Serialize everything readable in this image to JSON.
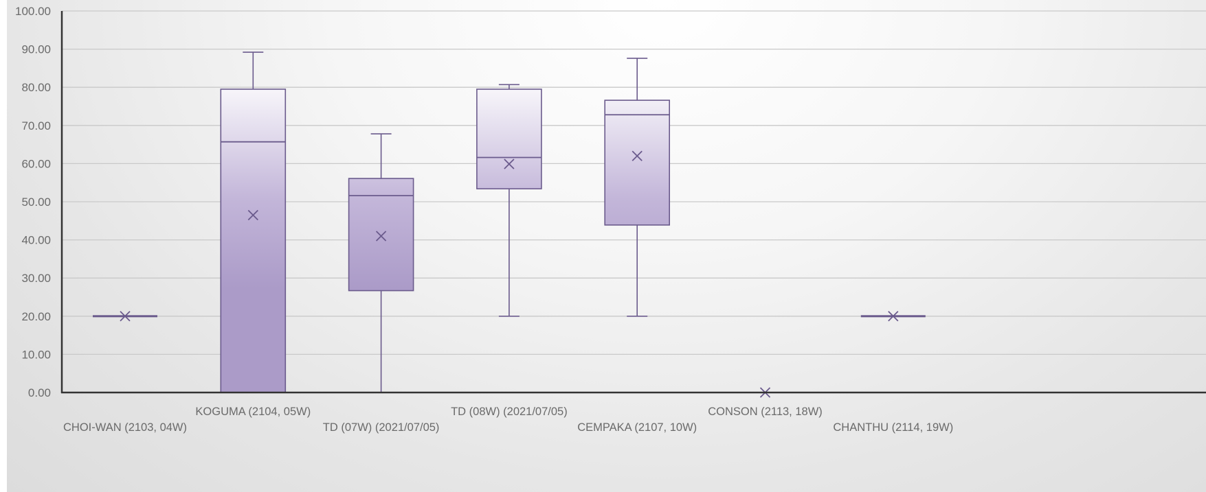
{
  "chart_data": {
    "type": "box",
    "title": "",
    "xlabel": "",
    "ylabel": "",
    "ylim": [
      0,
      100
    ],
    "y_ticks": [
      "0.00",
      "10.00",
      "20.00",
      "30.00",
      "40.00",
      "50.00",
      "60.00",
      "70.00",
      "80.00",
      "90.00",
      "100.00"
    ],
    "grid": true,
    "legend": "none",
    "colors": {
      "box_fill_top": "#f7f5fa",
      "box_fill_bottom": "#ab9bc8",
      "box_stroke": "#6a5a8c",
      "axis": "#333333",
      "grid": "#c9c9c9"
    },
    "categories": [
      {
        "label": "CHOI-WAN (2103, 04W)",
        "min": 20,
        "q1": 20,
        "median": 20,
        "q3": 20,
        "max": 20,
        "mean": 20
      },
      {
        "label": "KOGUMA (2104, 05W)",
        "min": 0,
        "q1": 0,
        "median": 65.7,
        "q3": 79.5,
        "max": 89.2,
        "mean": 46.5
      },
      {
        "label": "TD (07W) (2021/07/05)",
        "min": 0,
        "q1": 26.7,
        "median": 51.6,
        "q3": 56.1,
        "max": 67.8,
        "mean": 41.0
      },
      {
        "label": "TD (08W) (2021/07/05)",
        "min": 20,
        "q1": 53.4,
        "median": 61.6,
        "q3": 79.5,
        "max": 80.7,
        "mean": 59.9
      },
      {
        "label": "CEMPAKA (2107, 10W)",
        "min": 20,
        "q1": 43.9,
        "median": 72.8,
        "q3": 76.6,
        "max": 87.6,
        "mean": 62.0
      },
      {
        "label": "CONSON (2113, 18W)",
        "min": 0,
        "q1": 0,
        "median": 0,
        "q3": 0,
        "max": 0,
        "mean": 0
      },
      {
        "label": "CHANTHU (2114, 19W)",
        "min": 20,
        "q1": 20,
        "median": 20,
        "q3": 20,
        "max": 20,
        "mean": 20
      }
    ]
  }
}
